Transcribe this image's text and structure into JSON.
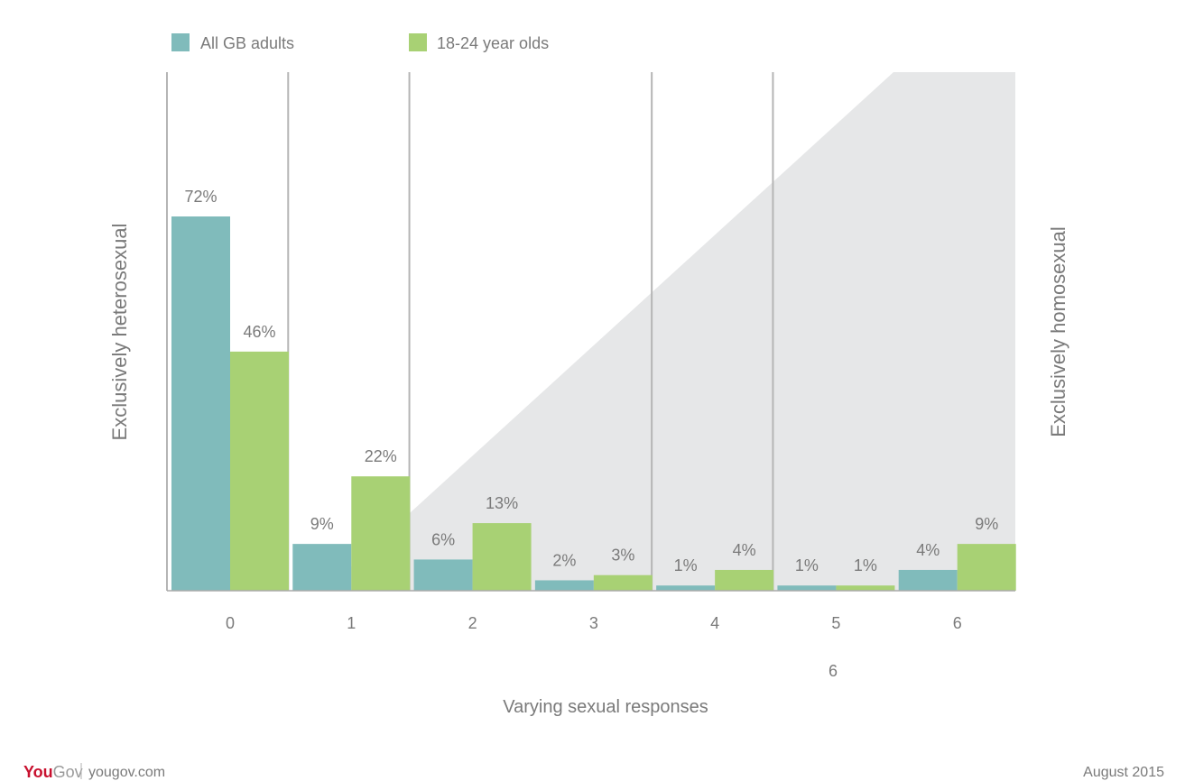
{
  "chart_data": {
    "type": "bar",
    "title": "",
    "categories": [
      "0",
      "1",
      "2",
      "3",
      "4",
      "5",
      "6"
    ],
    "series": [
      {
        "name": "All GB adults",
        "color": "#80bbbb",
        "values": [
          72,
          9,
          6,
          2,
          1,
          1,
          4
        ]
      },
      {
        "name": "18-24 year olds",
        "color": "#a8d174",
        "values": [
          46,
          22,
          13,
          3,
          4,
          1,
          9
        ]
      }
    ],
    "data_labels": [
      [
        "72%",
        "9%",
        "6%",
        "2%",
        "1%",
        "1%",
        "4%"
      ],
      [
        "46%",
        "22%",
        "13%",
        "3%",
        "4%",
        "1%",
        "9%"
      ]
    ],
    "ylim": [
      0,
      80
    ],
    "grid": false,
    "legend_position": "top-left",
    "xlabel": "Varying sexual responses",
    "extra_x_tick": "6",
    "left_label": "Exclusively heterosexual",
    "right_label": "Exclusively homosexual",
    "shaded_triangle": true,
    "divider_lines_after_categories": [
      "0",
      "1",
      "3",
      "4"
    ]
  },
  "footer": {
    "brand_you": "You",
    "brand_gov": "Gov",
    "site": "yougov.com",
    "date": "August 2015"
  },
  "colors": {
    "grid_line": "#b5b5b5",
    "triangle": "#e6e7e8",
    "axis": "#aaaaaa"
  }
}
